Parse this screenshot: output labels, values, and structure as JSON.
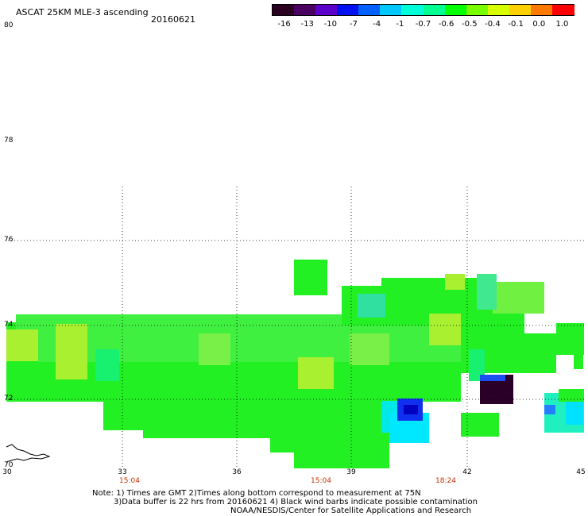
{
  "header": {
    "title": "ASCAT 25KM MLE-3 ascending",
    "date": "20160621"
  },
  "colorbar": {
    "labels": [
      "-16",
      "-13",
      "-10",
      "-7",
      "-4",
      "-1",
      "-0.7",
      "-0.6",
      "-0.5",
      "-0.4",
      "-0.1",
      "0.0",
      "1.0"
    ],
    "colors": [
      "#2a0020",
      "#4a0060",
      "#5a00c8",
      "#0010f0",
      "#0060ff",
      "#00c8ff",
      "#00ffd8",
      "#00ff90",
      "#00ff00",
      "#78ff00",
      "#d8ff00",
      "#ffd000",
      "#ff7800",
      "#ff0000"
    ]
  },
  "map": {
    "lat_labels": [
      "80",
      "78",
      "76",
      "74",
      "72",
      "70"
    ],
    "lon_labels": [
      "30",
      "33",
      "36",
      "39",
      "42",
      "45"
    ],
    "time_labels": [
      "15:04",
      "15:04",
      "18:24"
    ],
    "lat_range": [
      70,
      80
    ],
    "lon_range": [
      30,
      45
    ]
  },
  "notes": {
    "line1": "Note: 1) Times are GMT 2)Times along bottom correspond to measurement at 75N",
    "line2": "3)Data buffer is 22 hrs from 20160621 4) Black wind barbs indicate possible contamination",
    "line3": "NOAA/NESDIS/Center for Satellite Applications and Research"
  }
}
